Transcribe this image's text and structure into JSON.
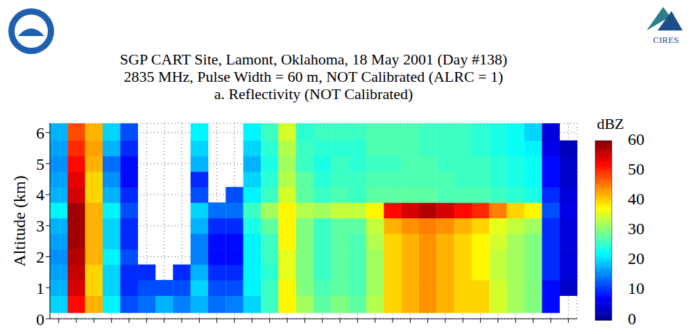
{
  "logo_text": "CIRES",
  "chart_data": {
    "type": "heatmap",
    "title": "SGP CART Site, Lamont, Oklahoma, 18 May 2001 (Day #138)",
    "subtitle": [
      "2835 MHz, Pulse Width = 60 m, NOT Calibrated (ALRC = 1)",
      "a. Reflectivity (NOT Calibrated)"
    ],
    "y_label": "Altitude (km)",
    "categories": [
      null,
      null,
      null,
      null,
      null,
      null,
      null,
      null,
      null,
      null,
      null,
      null,
      null,
      null,
      null,
      null,
      null,
      null,
      null,
      null,
      null,
      null,
      null,
      null,
      null,
      null,
      null,
      null,
      null,
      null
    ],
    "y_bins": [
      0.2,
      0.75,
      1.25,
      1.75,
      2.25,
      2.75,
      3.25,
      3.75,
      4.25,
      4.75,
      5.25,
      5.75,
      6.3
    ],
    "values": [
      [
        20,
        18,
        17,
        16,
        17,
        18,
        22,
        18,
        17,
        16,
        17,
        18
      ],
      [
        52,
        55,
        56,
        57,
        58,
        58,
        58,
        55,
        54,
        52,
        50,
        48
      ],
      [
        42,
        40,
        40,
        42,
        42,
        42,
        42,
        40,
        40,
        42,
        43,
        42
      ],
      [
        22,
        20,
        20,
        22,
        20,
        20,
        22,
        18,
        16,
        14,
        18,
        20
      ],
      [
        12,
        10,
        10,
        12,
        10,
        10,
        12,
        10,
        8,
        8,
        10,
        12
      ],
      [
        14,
        12,
        10,
        null,
        null,
        null,
        null,
        null,
        null,
        null,
        null,
        null
      ],
      [
        18,
        12,
        null,
        null,
        null,
        null,
        null,
        null,
        null,
        null,
        null,
        null
      ],
      [
        15,
        12,
        10,
        null,
        null,
        null,
        null,
        null,
        null,
        null,
        null,
        null
      ],
      [
        18,
        20,
        18,
        15,
        15,
        18,
        20,
        12,
        10,
        18,
        20,
        22
      ],
      [
        14,
        12,
        10,
        8,
        8,
        10,
        14,
        null,
        null,
        null,
        null,
        null
      ],
      [
        15,
        12,
        10,
        8,
        8,
        10,
        14,
        12,
        null,
        null,
        null,
        null
      ],
      [
        20,
        22,
        22,
        22,
        22,
        24,
        26,
        22,
        20,
        18,
        20,
        22
      ],
      [
        26,
        26,
        25,
        26,
        26,
        28,
        32,
        26,
        25,
        24,
        25,
        26
      ],
      [
        38,
        38,
        36,
        36,
        38,
        38,
        38,
        35,
        33,
        32,
        33,
        35
      ],
      [
        32,
        30,
        30,
        30,
        30,
        30,
        33,
        28,
        28,
        26,
        26,
        25
      ],
      [
        28,
        27,
        26,
        26,
        26,
        26,
        32,
        26,
        25,
        24,
        25,
        26
      ],
      [
        30,
        28,
        28,
        28,
        28,
        28,
        34,
        27,
        26,
        26,
        25,
        26
      ],
      [
        28,
        27,
        27,
        27,
        27,
        28,
        34,
        26,
        26,
        25,
        25,
        26
      ],
      [
        33,
        32,
        32,
        32,
        33,
        34,
        38,
        28,
        27,
        26,
        27,
        27
      ],
      [
        40,
        40,
        40,
        40,
        40,
        42,
        52,
        28,
        27,
        26,
        27,
        27
      ],
      [
        42,
        42,
        42,
        42,
        42,
        44,
        55,
        28,
        27,
        27,
        27,
        27
      ],
      [
        44,
        44,
        44,
        44,
        44,
        45,
        57,
        28,
        27,
        27,
        26,
        26
      ],
      [
        42,
        42,
        42,
        42,
        42,
        44,
        55,
        27,
        27,
        26,
        26,
        26
      ],
      [
        40,
        40,
        40,
        40,
        40,
        42,
        52,
        27,
        26,
        26,
        26,
        26
      ],
      [
        40,
        40,
        38,
        38,
        38,
        40,
        50,
        27,
        26,
        26,
        25,
        25
      ],
      [
        35,
        35,
        34,
        34,
        35,
        36,
        45,
        26,
        25,
        25,
        24,
        24
      ],
      [
        32,
        32,
        32,
        32,
        32,
        34,
        40,
        25,
        24,
        24,
        23,
        23
      ],
      [
        30,
        30,
        30,
        30,
        30,
        32,
        38,
        24,
        23,
        23,
        22,
        20
      ],
      [
        8,
        8,
        10,
        10,
        10,
        10,
        12,
        10,
        8,
        8,
        6,
        5
      ],
      [
        null,
        4,
        5,
        5,
        5,
        5,
        6,
        5,
        4,
        4,
        3,
        null
      ]
    ],
    "ylim": [
      0,
      6.3
    ],
    "yticks": [
      0,
      1,
      2,
      3,
      4,
      5,
      6
    ],
    "grid": true,
    "tick_labels": "y",
    "colorbar": {
      "label": "dBZ",
      "lim": [
        0,
        60
      ],
      "ticks": [
        0,
        10,
        20,
        30,
        40,
        50,
        60
      ]
    }
  }
}
